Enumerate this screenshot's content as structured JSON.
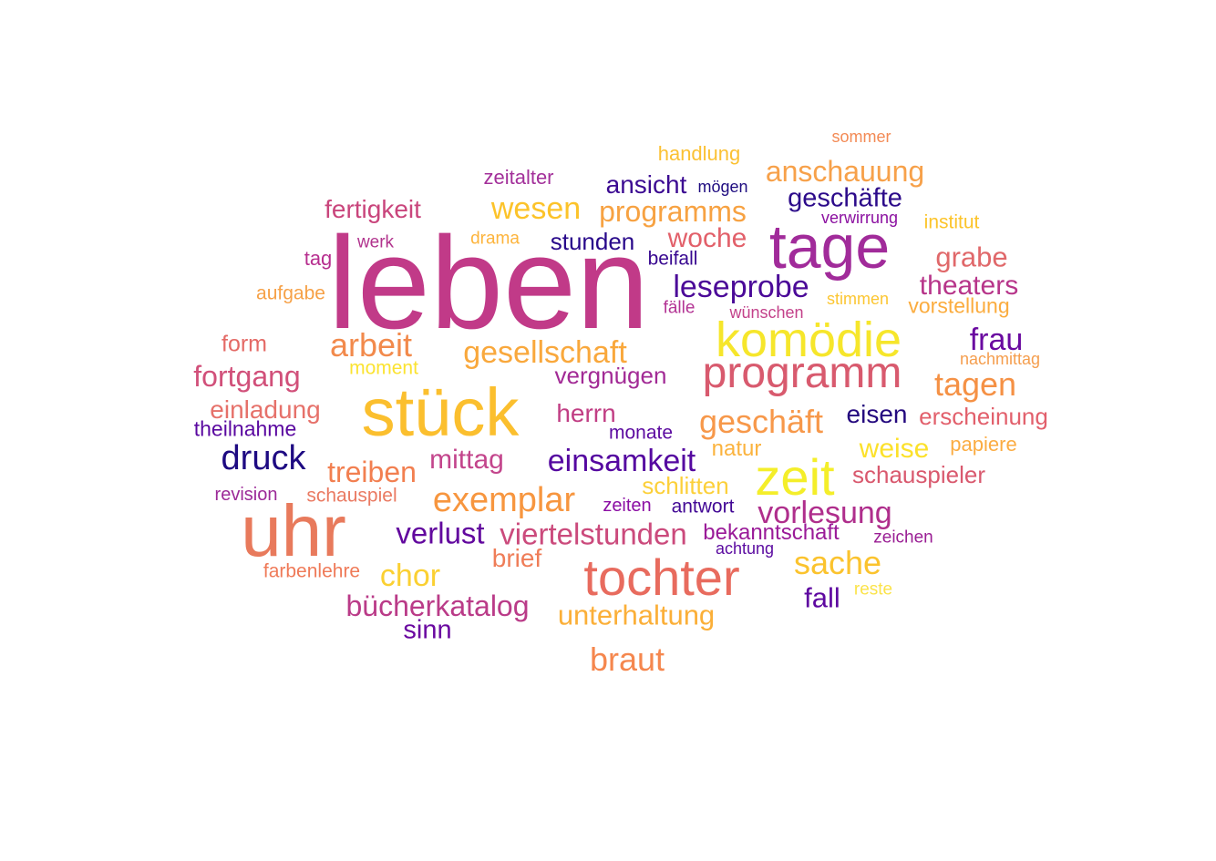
{
  "words": [
    {
      "text": "leben",
      "color": "#c13a88"
    },
    {
      "text": "uhr",
      "color": "#e87a5c"
    },
    {
      "text": "stück",
      "color": "#fbbf2e"
    },
    {
      "text": "tage",
      "color": "#a12b9a"
    },
    {
      "text": "tochter",
      "color": "#e86b5e"
    },
    {
      "text": "zeit",
      "color": "#f4ee2a"
    },
    {
      "text": "komödie",
      "color": "#f6e62b"
    },
    {
      "text": "programm",
      "color": "#d85a6e"
    },
    {
      "text": "anschauung",
      "color": "#f7a14a"
    },
    {
      "text": "geschäfte",
      "color": "#2c0a8a"
    },
    {
      "text": "wesen",
      "color": "#fcc32a"
    },
    {
      "text": "programms",
      "color": "#f7a242"
    },
    {
      "text": "fertigkeit",
      "color": "#c9457c"
    },
    {
      "text": "zeitalter",
      "color": "#a3309a"
    },
    {
      "text": "ansicht",
      "color": "#3c0b92"
    },
    {
      "text": "mögen",
      "color": "#1f0c80"
    },
    {
      "text": "handlung",
      "color": "#fbc133"
    },
    {
      "text": "sommer",
      "color": "#f38a55"
    },
    {
      "text": "verwirrung",
      "color": "#8b10a0"
    },
    {
      "text": "institut",
      "color": "#fcc42a"
    },
    {
      "text": "woche",
      "color": "#e2606a"
    },
    {
      "text": "stunden",
      "color": "#28088a"
    },
    {
      "text": "drama",
      "color": "#fdb43c"
    },
    {
      "text": "werk",
      "color": "#b1338d"
    },
    {
      "text": "tag",
      "color": "#b72f8f"
    },
    {
      "text": "beifall",
      "color": "#380890"
    },
    {
      "text": "grabe",
      "color": "#e0686a"
    },
    {
      "text": "theaters",
      "color": "#b7358a"
    },
    {
      "text": "leseprobe",
      "color": "#4b0a98"
    },
    {
      "text": "aufgabe",
      "color": "#f6a147"
    },
    {
      "text": "stimmen",
      "color": "#fcc632"
    },
    {
      "text": "vorstellung",
      "color": "#fbac3e"
    },
    {
      "text": "fälle",
      "color": "#b33494"
    },
    {
      "text": "wünschen",
      "color": "#c3418a"
    },
    {
      "text": "form",
      "color": "#e46a66"
    },
    {
      "text": "arbeit",
      "color": "#f28a4c"
    },
    {
      "text": "gesellschaft",
      "color": "#f9a83c"
    },
    {
      "text": "frau",
      "color": "#6a0aa0"
    },
    {
      "text": "moment",
      "color": "#fbe331"
    },
    {
      "text": "nachmittag",
      "color": "#f59e4e"
    },
    {
      "text": "fortgang",
      "color": "#d1507a"
    },
    {
      "text": "vergnügen",
      "color": "#a22a95"
    },
    {
      "text": "tagen",
      "color": "#f59145"
    },
    {
      "text": "einladung",
      "color": "#e6716a"
    },
    {
      "text": "herrn",
      "color": "#c13e84"
    },
    {
      "text": "geschäft",
      "color": "#f7984a"
    },
    {
      "text": "eisen",
      "color": "#24087e"
    },
    {
      "text": "erscheinung",
      "color": "#e2606c"
    },
    {
      "text": "theilnahme",
      "color": "#5a08a0"
    },
    {
      "text": "monate",
      "color": "#5c0ba0"
    },
    {
      "text": "druck",
      "color": "#1e0a82"
    },
    {
      "text": "natur",
      "color": "#fbb33e"
    },
    {
      "text": "weise",
      "color": "#fce12b"
    },
    {
      "text": "papiere",
      "color": "#fbac42"
    },
    {
      "text": "mittag",
      "color": "#c3458c"
    },
    {
      "text": "einsamkeit",
      "color": "#5508a0"
    },
    {
      "text": "treiben",
      "color": "#f27f50"
    },
    {
      "text": "schlitten",
      "color": "#fcd03a"
    },
    {
      "text": "schauspieler",
      "color": "#d9596e"
    },
    {
      "text": "revision",
      "color": "#9c2a98"
    },
    {
      "text": "schauspiel",
      "color": "#ea7a62"
    },
    {
      "text": "exemplar",
      "color": "#f7963f"
    },
    {
      "text": "zeiten",
      "color": "#8b0da4"
    },
    {
      "text": "antwort",
      "color": "#420895"
    },
    {
      "text": "vorlesung",
      "color": "#af2e8c"
    },
    {
      "text": "verlust",
      "color": "#62089e"
    },
    {
      "text": "viertelstunden",
      "color": "#cb4a7c"
    },
    {
      "text": "bekanntschaft",
      "color": "#9a1a98"
    },
    {
      "text": "achtung",
      "color": "#5a0aa0"
    },
    {
      "text": "zeichen",
      "color": "#9a1e94"
    },
    {
      "text": "brief",
      "color": "#ef7d58"
    },
    {
      "text": "farbenlehre",
      "color": "#ef7a58"
    },
    {
      "text": "chor",
      "color": "#fbd032"
    },
    {
      "text": "sache",
      "color": "#fbc32e"
    },
    {
      "text": "fall",
      "color": "#5e08a0"
    },
    {
      "text": "reste",
      "color": "#fbe34a"
    },
    {
      "text": "bücherkatalog",
      "color": "#ba3b88"
    },
    {
      "text": "unterhaltung",
      "color": "#fbaf38"
    },
    {
      "text": "sinn",
      "color": "#6a08a0"
    },
    {
      "text": "braut",
      "color": "#f5874e"
    }
  ]
}
